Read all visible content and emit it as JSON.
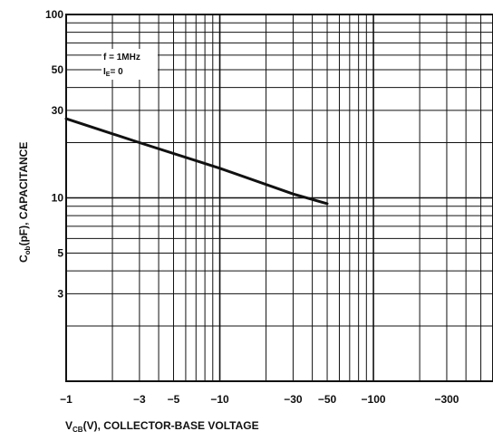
{
  "chart_data": {
    "type": "line",
    "title": "",
    "xlabel": "V",
    "xlabel_sub": "CB",
    "xlabel_rest": "(V), COLLECTOR-BASE VOLTAGE",
    "ylabel": "C",
    "ylabel_sub": "ob",
    "ylabel_rest": "(pF), CAPACITANCE",
    "x_scale": "log",
    "y_scale": "log",
    "xlim": [
      -1,
      -600
    ],
    "ylim": [
      1,
      100
    ],
    "grid": true,
    "x_ticks": [
      {
        "value": -1,
        "label": "−1"
      },
      {
        "value": -3,
        "label": "−3"
      },
      {
        "value": -5,
        "label": "−5"
      },
      {
        "value": -10,
        "label": "−10"
      },
      {
        "value": -30,
        "label": "−30"
      },
      {
        "value": -50,
        "label": "−50"
      },
      {
        "value": -100,
        "label": "−100"
      },
      {
        "value": -300,
        "label": "−300"
      }
    ],
    "y_ticks": [
      {
        "value": 100,
        "label": "100"
      },
      {
        "value": 50,
        "label": "50"
      },
      {
        "value": 30,
        "label": "30"
      },
      {
        "value": 10,
        "label": "10"
      },
      {
        "value": 5,
        "label": "5"
      },
      {
        "value": 3,
        "label": "3"
      }
    ],
    "annotations": [
      {
        "text": "f = 1MHz"
      },
      {
        "text": "I",
        "sub": "E",
        "rest": "= 0"
      }
    ],
    "series": [
      {
        "x": [
          -1,
          -3,
          -10,
          -30,
          -50
        ],
        "y": [
          27,
          20,
          14.5,
          10.5,
          9.3
        ],
        "color": "#111111"
      }
    ]
  }
}
